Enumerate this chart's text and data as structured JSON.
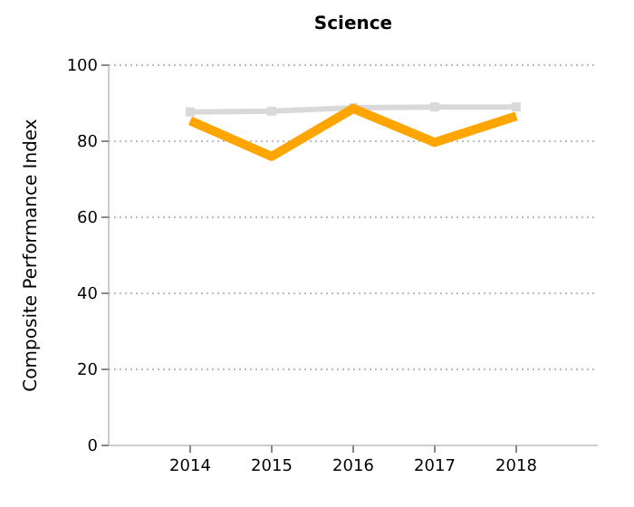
{
  "chart_data": {
    "type": "line",
    "title": "Science",
    "ylabel": "Composite Performance Index",
    "categories": [
      "2014",
      "2015",
      "2016",
      "2017",
      "2018"
    ],
    "series": [
      {
        "color": "#d9d9d9",
        "values": [
          87.7,
          87.9,
          88.8,
          89,
          89
        ],
        "marker": "square"
      },
      {
        "color": "#ffa500",
        "values": [
          85.4,
          76,
          88.6,
          79.7,
          86.6
        ]
      }
    ],
    "ylim": [
      0,
      100
    ],
    "yticks": [
      0,
      20,
      40,
      60,
      80,
      100
    ],
    "grid": "y"
  }
}
